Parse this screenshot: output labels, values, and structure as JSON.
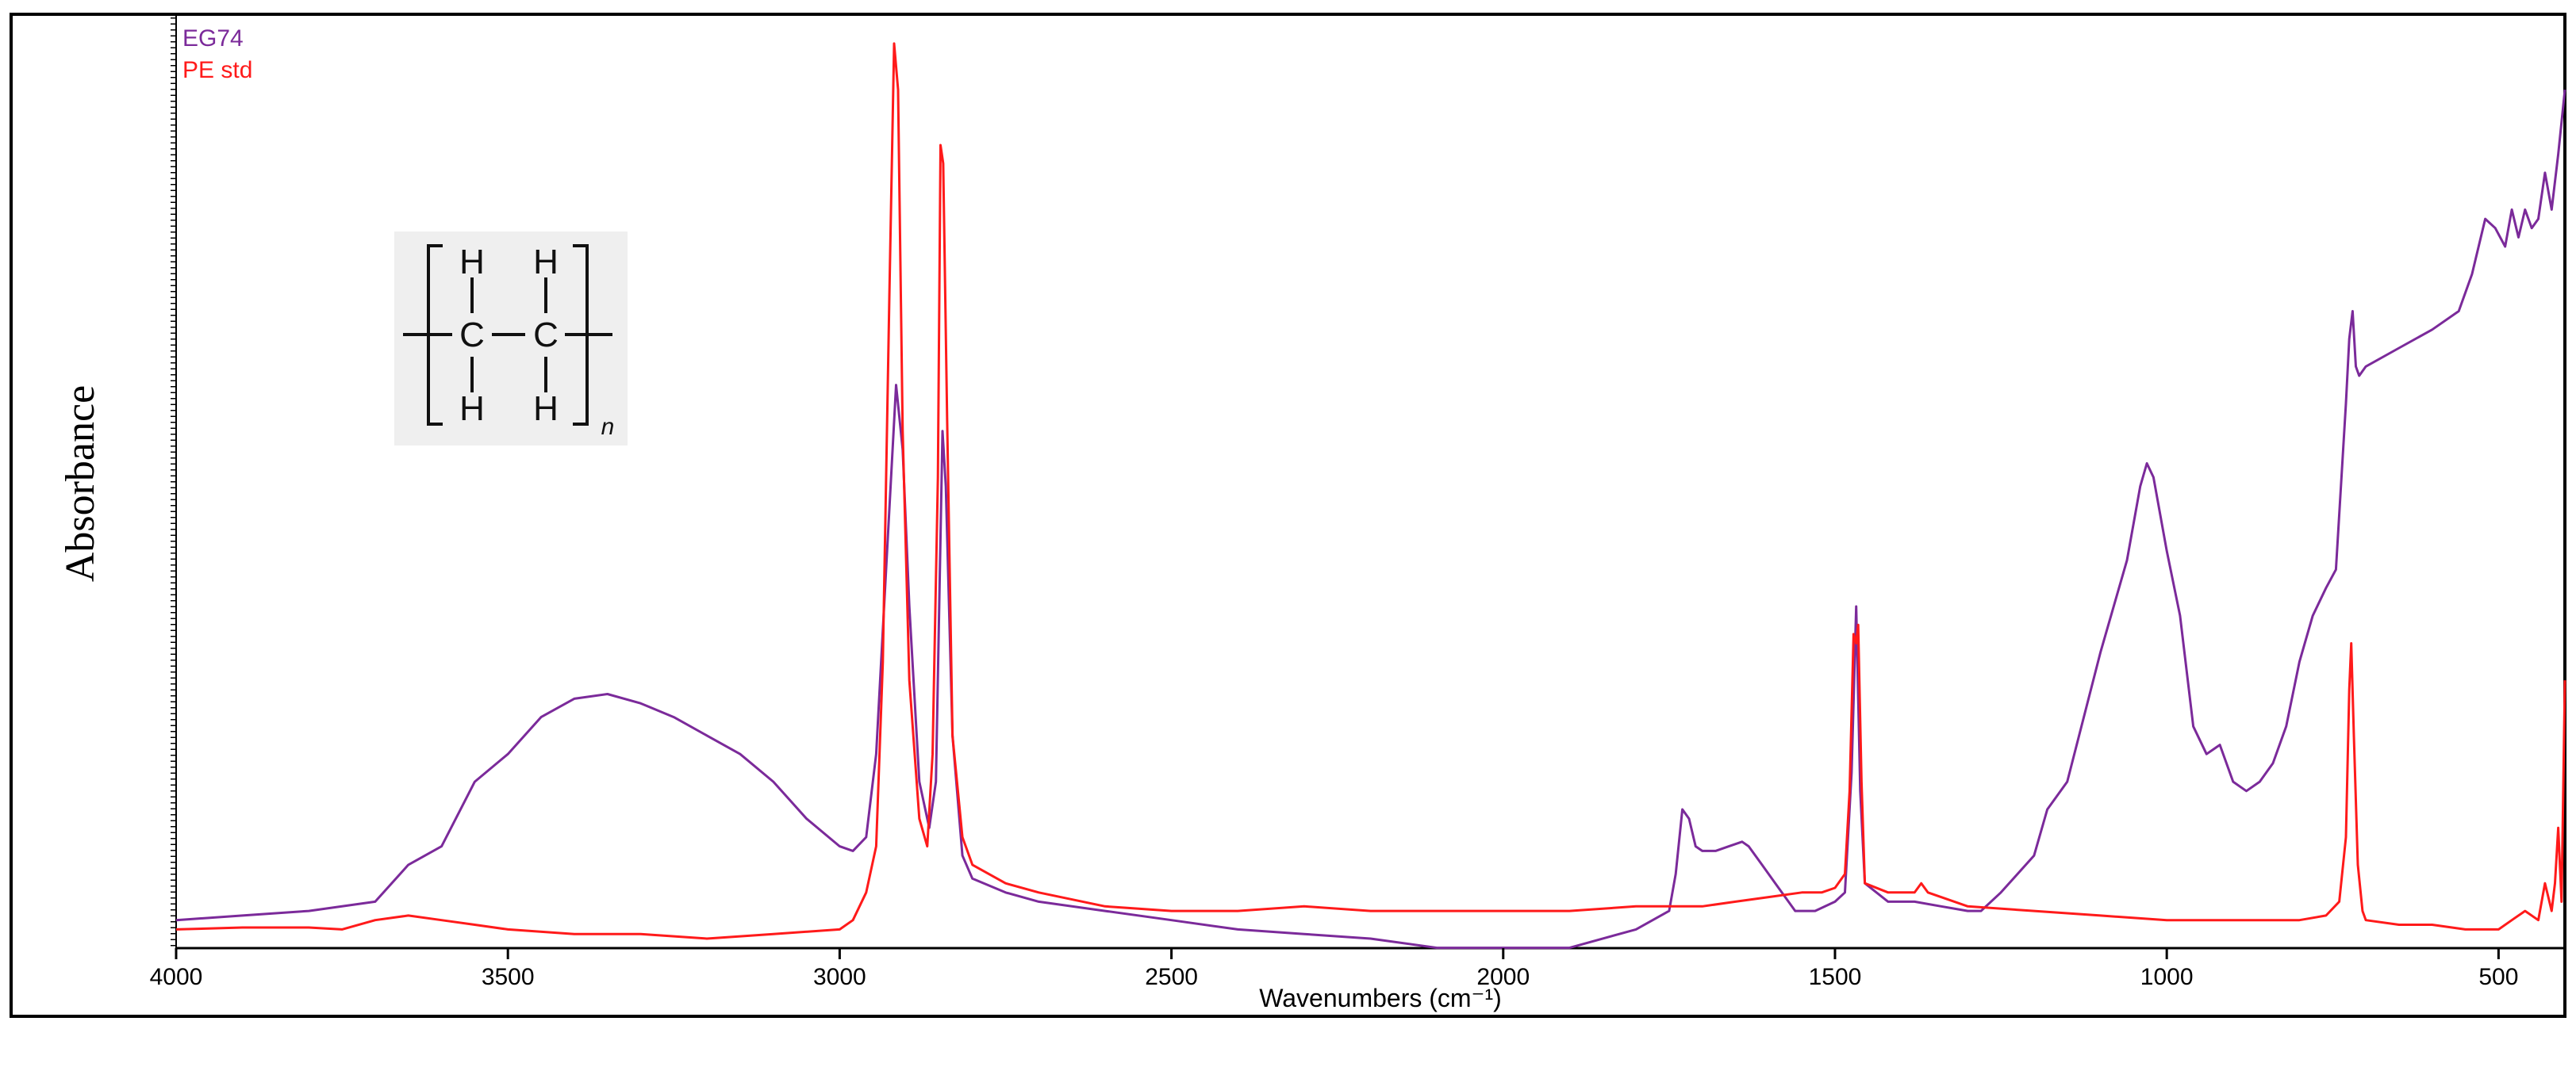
{
  "chart_data": {
    "type": "line",
    "title": "",
    "xlabel": "Wavenumbers (cm⁻¹)",
    "ylabel": "Absorbance",
    "xlim": [
      4000,
      400
    ],
    "ylim": [
      0,
      1
    ],
    "x_reversed": true,
    "x_ticks": [
      4000,
      3500,
      3000,
      2500,
      2000,
      1500,
      1000,
      500
    ],
    "y_tick_labels_shown": false,
    "grid": false,
    "legend": {
      "placement": "top-left"
    },
    "colors": {
      "EG74": "#7b2a9a",
      "PE std": "#ff1a1a"
    },
    "series": [
      {
        "name": "EG74",
        "points": [
          [
            4000,
            0.02
          ],
          [
            3900,
            0.025
          ],
          [
            3800,
            0.03
          ],
          [
            3700,
            0.04
          ],
          [
            3650,
            0.08
          ],
          [
            3600,
            0.1
          ],
          [
            3550,
            0.17
          ],
          [
            3500,
            0.2
          ],
          [
            3450,
            0.24
          ],
          [
            3400,
            0.26
          ],
          [
            3350,
            0.265
          ],
          [
            3300,
            0.255
          ],
          [
            3250,
            0.24
          ],
          [
            3200,
            0.22
          ],
          [
            3150,
            0.2
          ],
          [
            3100,
            0.17
          ],
          [
            3050,
            0.13
          ],
          [
            3000,
            0.1
          ],
          [
            2980,
            0.095
          ],
          [
            2960,
            0.11
          ],
          [
            2945,
            0.2
          ],
          [
            2930,
            0.4
          ],
          [
            2915,
            0.6
          ],
          [
            2905,
            0.53
          ],
          [
            2895,
            0.36
          ],
          [
            2880,
            0.17
          ],
          [
            2865,
            0.12
          ],
          [
            2855,
            0.17
          ],
          [
            2845,
            0.55
          ],
          [
            2840,
            0.49
          ],
          [
            2830,
            0.22
          ],
          [
            2815,
            0.09
          ],
          [
            2800,
            0.065
          ],
          [
            2750,
            0.05
          ],
          [
            2700,
            0.04
          ],
          [
            2600,
            0.03
          ],
          [
            2500,
            0.02
          ],
          [
            2400,
            0.01
          ],
          [
            2300,
            0.005
          ],
          [
            2200,
            0.0
          ],
          [
            2100,
            -0.01
          ],
          [
            2000,
            -0.01
          ],
          [
            1900,
            -0.01
          ],
          [
            1800,
            0.01
          ],
          [
            1750,
            0.03
          ],
          [
            1740,
            0.07
          ],
          [
            1730,
            0.14
          ],
          [
            1720,
            0.13
          ],
          [
            1710,
            0.1
          ],
          [
            1700,
            0.095
          ],
          [
            1680,
            0.095
          ],
          [
            1660,
            0.1
          ],
          [
            1640,
            0.105
          ],
          [
            1630,
            0.1
          ],
          [
            1610,
            0.08
          ],
          [
            1590,
            0.06
          ],
          [
            1560,
            0.03
          ],
          [
            1530,
            0.03
          ],
          [
            1500,
            0.04
          ],
          [
            1485,
            0.05
          ],
          [
            1475,
            0.18
          ],
          [
            1468,
            0.36
          ],
          [
            1462,
            0.16
          ],
          [
            1455,
            0.06
          ],
          [
            1420,
            0.04
          ],
          [
            1380,
            0.04
          ],
          [
            1340,
            0.035
          ],
          [
            1300,
            0.03
          ],
          [
            1280,
            0.03
          ],
          [
            1250,
            0.05
          ],
          [
            1200,
            0.09
          ],
          [
            1180,
            0.14
          ],
          [
            1150,
            0.17
          ],
          [
            1100,
            0.31
          ],
          [
            1060,
            0.41
          ],
          [
            1040,
            0.49
          ],
          [
            1030,
            0.515
          ],
          [
            1020,
            0.5
          ],
          [
            1000,
            0.42
          ],
          [
            980,
            0.35
          ],
          [
            960,
            0.23
          ],
          [
            940,
            0.2
          ],
          [
            920,
            0.21
          ],
          [
            900,
            0.17
          ],
          [
            880,
            0.16
          ],
          [
            860,
            0.17
          ],
          [
            840,
            0.19
          ],
          [
            820,
            0.23
          ],
          [
            800,
            0.3
          ],
          [
            780,
            0.35
          ],
          [
            760,
            0.38
          ],
          [
            745,
            0.4
          ],
          [
            735,
            0.52
          ],
          [
            730,
            0.58
          ],
          [
            725,
            0.65
          ],
          [
            720,
            0.68
          ],
          [
            715,
            0.62
          ],
          [
            710,
            0.61
          ],
          [
            700,
            0.62
          ],
          [
            650,
            0.64
          ],
          [
            600,
            0.66
          ],
          [
            560,
            0.68
          ],
          [
            540,
            0.72
          ],
          [
            520,
            0.78
          ],
          [
            505,
            0.77
          ],
          [
            490,
            0.75
          ],
          [
            480,
            0.79
          ],
          [
            470,
            0.76
          ],
          [
            460,
            0.79
          ],
          [
            450,
            0.77
          ],
          [
            440,
            0.78
          ],
          [
            430,
            0.83
          ],
          [
            420,
            0.79
          ],
          [
            410,
            0.85
          ],
          [
            400,
            0.92
          ]
        ]
      },
      {
        "name": "PE std",
        "points": [
          [
            4000,
            0.01
          ],
          [
            3900,
            0.012
          ],
          [
            3800,
            0.012
          ],
          [
            3750,
            0.01
          ],
          [
            3700,
            0.02
          ],
          [
            3650,
            0.025
          ],
          [
            3600,
            0.02
          ],
          [
            3550,
            0.015
          ],
          [
            3500,
            0.01
          ],
          [
            3400,
            0.005
          ],
          [
            3300,
            0.005
          ],
          [
            3200,
            0.0
          ],
          [
            3100,
            0.005
          ],
          [
            3000,
            0.01
          ],
          [
            2980,
            0.02
          ],
          [
            2960,
            0.05
          ],
          [
            2945,
            0.1
          ],
          [
            2935,
            0.3
          ],
          [
            2925,
            0.7
          ],
          [
            2918,
            0.97
          ],
          [
            2912,
            0.92
          ],
          [
            2905,
            0.55
          ],
          [
            2895,
            0.28
          ],
          [
            2880,
            0.13
          ],
          [
            2868,
            0.1
          ],
          [
            2860,
            0.2
          ],
          [
            2852,
            0.5
          ],
          [
            2848,
            0.86
          ],
          [
            2844,
            0.84
          ],
          [
            2838,
            0.56
          ],
          [
            2830,
            0.22
          ],
          [
            2815,
            0.11
          ],
          [
            2800,
            0.08
          ],
          [
            2750,
            0.06
          ],
          [
            2700,
            0.05
          ],
          [
            2600,
            0.035
          ],
          [
            2500,
            0.03
          ],
          [
            2400,
            0.03
          ],
          [
            2300,
            0.035
          ],
          [
            2200,
            0.03
          ],
          [
            2100,
            0.03
          ],
          [
            2000,
            0.03
          ],
          [
            1900,
            0.03
          ],
          [
            1800,
            0.035
          ],
          [
            1750,
            0.035
          ],
          [
            1700,
            0.035
          ],
          [
            1650,
            0.04
          ],
          [
            1600,
            0.045
          ],
          [
            1550,
            0.05
          ],
          [
            1520,
            0.05
          ],
          [
            1500,
            0.055
          ],
          [
            1485,
            0.07
          ],
          [
            1478,
            0.16
          ],
          [
            1472,
            0.33
          ],
          [
            1468,
            0.32
          ],
          [
            1465,
            0.34
          ],
          [
            1460,
            0.17
          ],
          [
            1455,
            0.06
          ],
          [
            1420,
            0.05
          ],
          [
            1380,
            0.05
          ],
          [
            1370,
            0.06
          ],
          [
            1360,
            0.05
          ],
          [
            1300,
            0.035
          ],
          [
            1200,
            0.03
          ],
          [
            1100,
            0.025
          ],
          [
            1000,
            0.02
          ],
          [
            900,
            0.02
          ],
          [
            800,
            0.02
          ],
          [
            760,
            0.025
          ],
          [
            740,
            0.04
          ],
          [
            730,
            0.11
          ],
          [
            725,
            0.27
          ],
          [
            722,
            0.32
          ],
          [
            718,
            0.22
          ],
          [
            712,
            0.08
          ],
          [
            705,
            0.03
          ],
          [
            700,
            0.02
          ],
          [
            650,
            0.015
          ],
          [
            600,
            0.015
          ],
          [
            550,
            0.01
          ],
          [
            500,
            0.01
          ],
          [
            480,
            0.02
          ],
          [
            460,
            0.03
          ],
          [
            440,
            0.02
          ],
          [
            430,
            0.06
          ],
          [
            420,
            0.03
          ],
          [
            415,
            0.06
          ],
          [
            410,
            0.12
          ],
          [
            405,
            0.04
          ],
          [
            400,
            0.28
          ]
        ]
      }
    ]
  }
}
